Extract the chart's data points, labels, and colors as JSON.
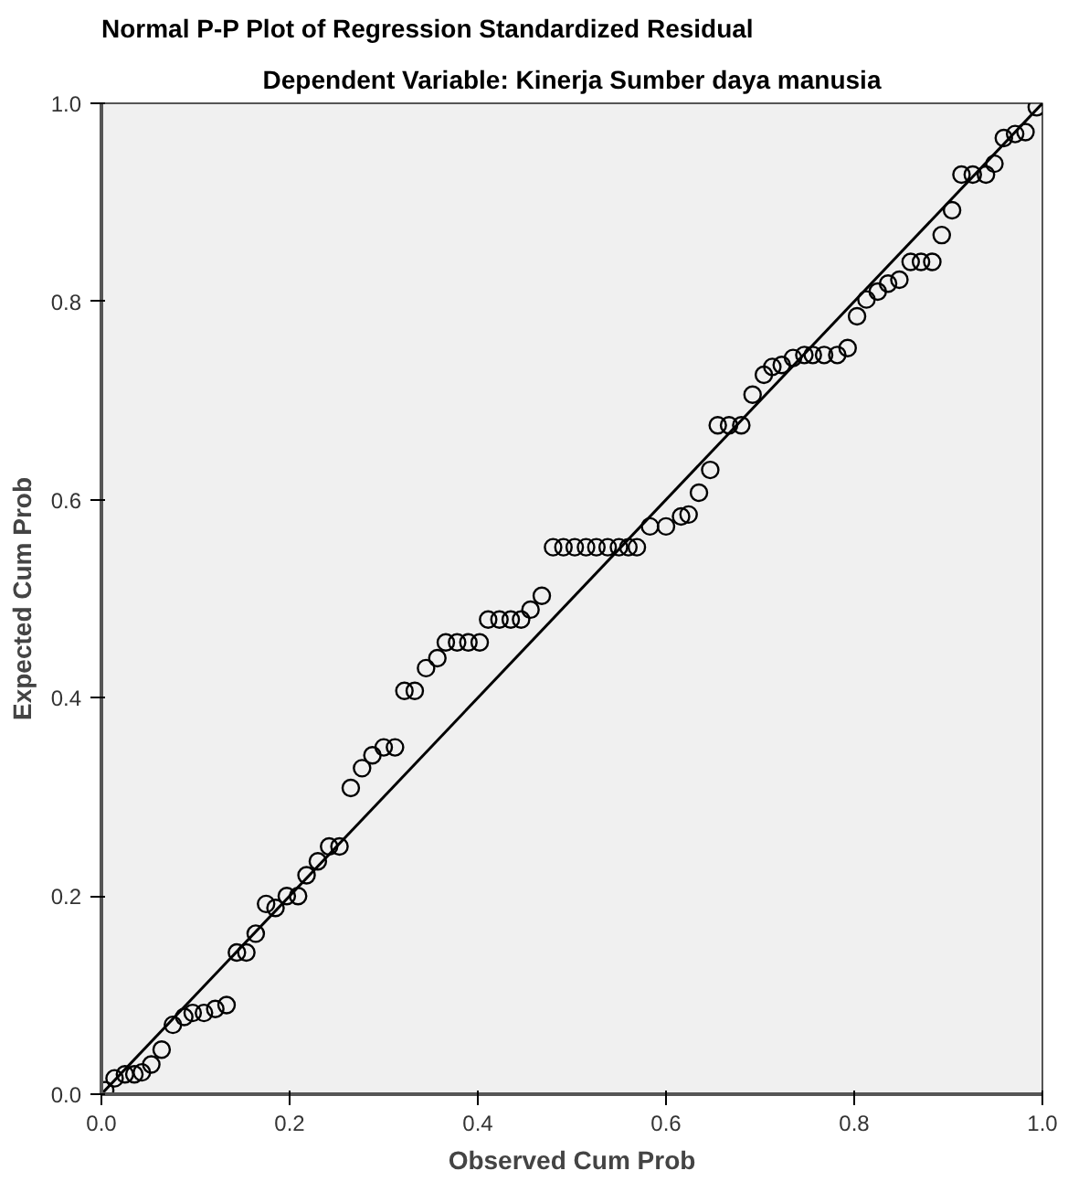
{
  "chart_data": {
    "type": "scatter",
    "title": "Normal P-P Plot of Regression Standardized Residual",
    "subtitle": "Dependent Variable: Kinerja Sumber daya manusia",
    "xlabel": "Observed Cum Prob",
    "ylabel": "Expected Cum Prob",
    "xlim": [
      0,
      1
    ],
    "ylim": [
      0,
      1
    ],
    "xticks": [
      {
        "value": 0,
        "label": "0.0"
      },
      0.2,
      0.4,
      0.6,
      0.8,
      {
        "value": 1,
        "label": "1.0"
      }
    ],
    "yticks": [
      {
        "value": 0,
        "label": "0.0"
      },
      0.2,
      0.4,
      0.6,
      0.8,
      {
        "value": 1,
        "label": "1.0"
      }
    ],
    "grid": false,
    "series": [
      {
        "marker": "circle",
        "color": "#000000",
        "x": [
          0.004,
          0.014,
          0.025,
          0.035,
          0.043,
          0.053,
          0.064,
          0.076,
          0.088,
          0.097,
          0.109,
          0.121,
          0.133,
          0.144,
          0.154,
          0.164,
          0.175,
          0.185,
          0.197,
          0.209,
          0.218,
          0.23,
          0.242,
          0.253,
          0.265,
          0.277,
          0.288,
          0.3,
          0.312,
          0.322,
          0.333,
          0.345,
          0.357,
          0.366,
          0.378,
          0.39,
          0.402,
          0.411,
          0.423,
          0.435,
          0.446,
          0.456,
          0.468,
          0.48,
          0.491,
          0.503,
          0.515,
          0.526,
          0.538,
          0.55,
          0.56,
          0.569,
          0.583,
          0.6,
          0.616,
          0.624,
          0.635,
          0.647,
          0.655,
          0.667,
          0.68,
          0.692,
          0.704,
          0.713,
          0.723,
          0.735,
          0.747,
          0.756,
          0.768,
          0.782,
          0.793,
          0.803,
          0.813,
          0.825,
          0.836,
          0.848,
          0.86,
          0.871,
          0.883,
          0.893,
          0.904,
          0.914,
          0.926,
          0.94,
          0.949,
          0.959,
          0.971,
          0.982,
          0.994
        ],
        "values": [
          0.004,
          0.016,
          0.02,
          0.02,
          0.022,
          0.03,
          0.045,
          0.07,
          0.078,
          0.082,
          0.082,
          0.086,
          0.09,
          0.143,
          0.143,
          0.162,
          0.192,
          0.188,
          0.2,
          0.2,
          0.221,
          0.235,
          0.25,
          0.25,
          0.309,
          0.329,
          0.342,
          0.35,
          0.35,
          0.407,
          0.407,
          0.43,
          0.44,
          0.456,
          0.456,
          0.456,
          0.456,
          0.479,
          0.479,
          0.479,
          0.479,
          0.489,
          0.503,
          0.552,
          0.552,
          0.552,
          0.552,
          0.552,
          0.552,
          0.552,
          0.552,
          0.552,
          0.573,
          0.573,
          0.583,
          0.585,
          0.607,
          0.63,
          0.675,
          0.675,
          0.675,
          0.706,
          0.726,
          0.734,
          0.736,
          0.743,
          0.746,
          0.746,
          0.746,
          0.746,
          0.753,
          0.785,
          0.802,
          0.81,
          0.818,
          0.822,
          0.84,
          0.84,
          0.84,
          0.867,
          0.892,
          0.928,
          0.928,
          0.928,
          0.939,
          0.965,
          0.969,
          0.971,
          0.996
        ]
      },
      {
        "type": "line",
        "color": "#000000",
        "x": [
          0,
          1
        ],
        "values": [
          0,
          1
        ]
      }
    ]
  }
}
